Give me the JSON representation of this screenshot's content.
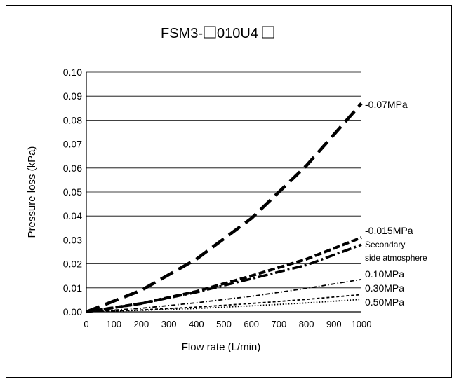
{
  "chart_data": {
    "type": "line",
    "title_prefix": "FSM3-",
    "title_middle": "010U4",
    "xlabel": "Flow rate (L/min)",
    "ylabel": "Pressure loss (kPa)",
    "xlim": [
      0,
      1000
    ],
    "ylim": [
      0,
      0.1
    ],
    "x_ticks": [
      "0",
      "100",
      "200",
      "300",
      "400",
      "500",
      "600",
      "700",
      "800",
      "900",
      "1000"
    ],
    "y_ticks": [
      "0.00",
      "0.01",
      "0.02",
      "0.03",
      "0.04",
      "0.05",
      "0.06",
      "0.07",
      "0.08",
      "0.09",
      "0.10"
    ],
    "grid": "horizontal",
    "series": [
      {
        "name": "-0.07MPa",
        "style": "long-dash",
        "x": [
          0,
          200,
          400,
          600,
          800,
          1000
        ],
        "values": [
          0,
          0.009,
          0.022,
          0.039,
          0.061,
          0.087
        ]
      },
      {
        "name": "-0.015MPa",
        "style": "dash",
        "x": [
          0,
          200,
          400,
          600,
          800,
          1000
        ],
        "values": [
          0,
          0.0035,
          0.0085,
          0.015,
          0.022,
          0.031
        ]
      },
      {
        "name": "Secondary side atmosphere",
        "style": "dash-dot-heavy",
        "x": [
          0,
          200,
          400,
          600,
          800,
          1000
        ],
        "values": [
          0,
          0.0035,
          0.0082,
          0.0138,
          0.0195,
          0.028
        ]
      },
      {
        "name": "0.10MPa",
        "style": "dash-dot-thin",
        "x": [
          0,
          200,
          400,
          600,
          800,
          1000
        ],
        "values": [
          0,
          0.0015,
          0.0038,
          0.0065,
          0.0098,
          0.0135
        ]
      },
      {
        "name": "0.30MPa",
        "style": "short-dash",
        "x": [
          0,
          200,
          400,
          600,
          800,
          1000
        ],
        "values": [
          0,
          0.0008,
          0.002,
          0.0035,
          0.0052,
          0.0072
        ]
      },
      {
        "name": "0.50MPa",
        "style": "dot",
        "x": [
          0,
          200,
          400,
          600,
          800,
          1000
        ],
        "values": [
          0,
          0.0006,
          0.0014,
          0.0025,
          0.0037,
          0.0052
        ]
      }
    ],
    "labels": {
      "s0": "-0.07MPa",
      "s1": "-0.015MPa",
      "s2a": "Secondary",
      "s2b": "side atmosphere",
      "s3": "0.10MPa",
      "s4": "0.30MPa",
      "s5": "0.50MPa"
    }
  }
}
